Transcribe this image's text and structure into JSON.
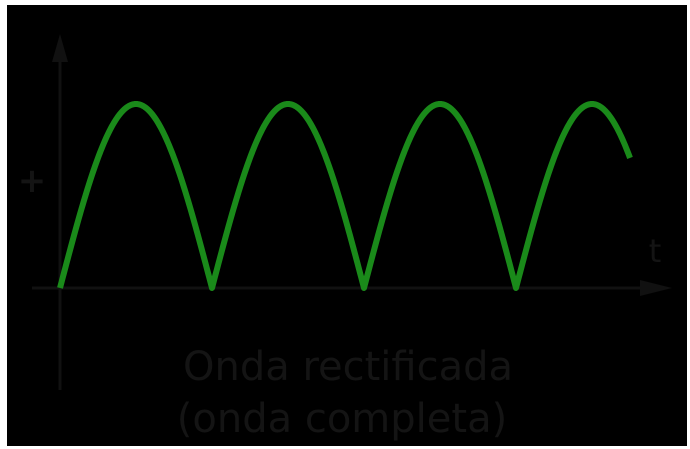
{
  "diagram": {
    "background_color": "#000000",
    "frame_color": "#ffffff",
    "wave_color": "#1a8a1a",
    "axis_color": "#111111",
    "text_color": "#141414",
    "wave_type": "full-wave rectified sine |sin t|",
    "half_cycles_shown": 4,
    "last_cycle_fraction_shown": 0.75,
    "plus_sign": "+",
    "t_label": "t",
    "caption_line1": "Onda rectificada",
    "caption_line2": "(onda completa)"
  }
}
